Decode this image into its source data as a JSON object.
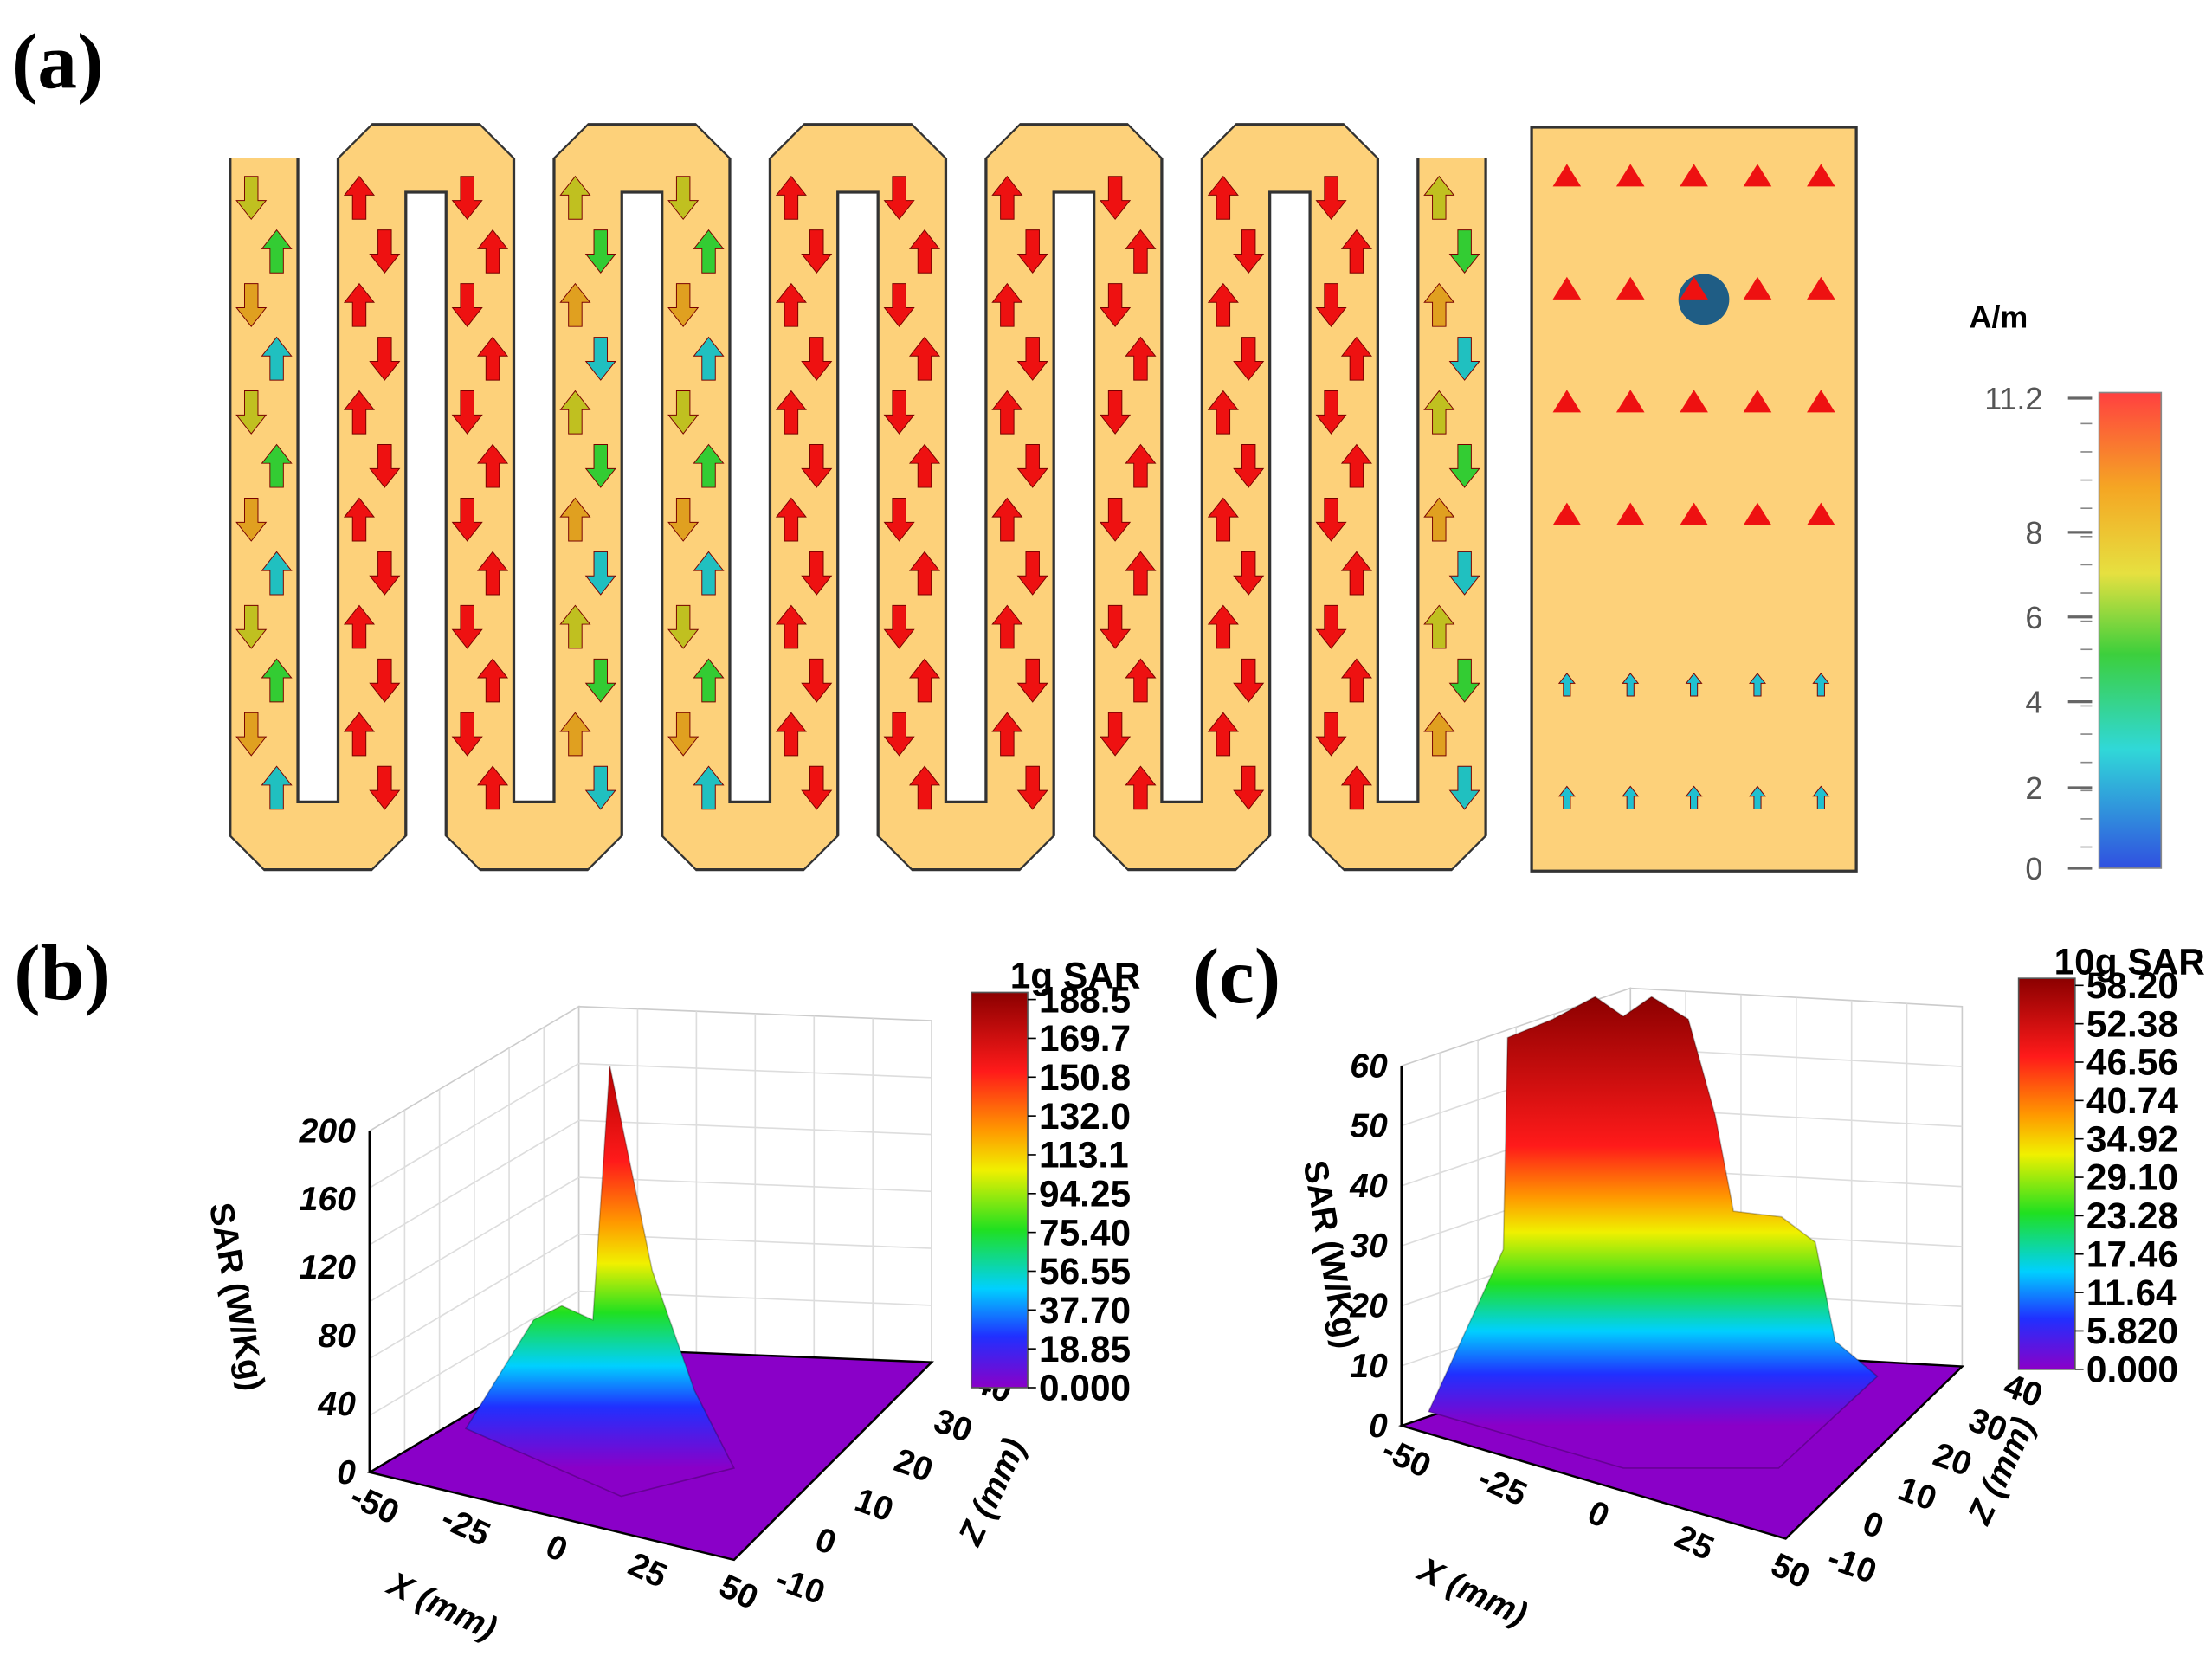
{
  "panels": [
    {
      "label": "(a)",
      "colorbar": {
        "title": "A/m",
        "ticks": [
          "11.2",
          "8",
          "6",
          "4",
          "2",
          "0"
        ]
      }
    },
    {
      "label": "(b)",
      "colorbar": {
        "title": "1g SAR",
        "ticks": [
          "188.5",
          "169.7",
          "150.8",
          "132.0",
          "113.1",
          "94.25",
          "75.40",
          "56.55",
          "37.70",
          "18.85",
          "0.000"
        ]
      },
      "y_axis": {
        "label": "SAR (W/Kg)",
        "ticks": [
          "200",
          "160",
          "120",
          "80",
          "40",
          "0"
        ]
      },
      "x_axis": {
        "label": "X (mm)",
        "ticks": [
          "-50",
          "-25",
          "0",
          "25",
          "50"
        ]
      },
      "z_axis": {
        "label": "Z (mm)",
        "ticks": [
          "40",
          "30",
          "20",
          "10",
          "0",
          "-10"
        ]
      }
    },
    {
      "label": "(c)",
      "colorbar": {
        "title": "10g SAR",
        "ticks": [
          "58.20",
          "52.38",
          "46.56",
          "40.74",
          "34.92",
          "29.10",
          "23.28",
          "17.46",
          "11.64",
          "5.820",
          "0.000"
        ]
      },
      "y_axis": {
        "label": "SAR (W/Kg)",
        "ticks": [
          "60",
          "50",
          "40",
          "30",
          "20",
          "10",
          "0"
        ]
      },
      "x_axis": {
        "label": "X (mm)",
        "ticks": [
          "-50",
          "-25",
          "0",
          "25",
          "50"
        ]
      },
      "z_axis": {
        "label": "Z (mm)",
        "ticks": [
          "40",
          "30",
          "20",
          "10",
          "0",
          "-10"
        ]
      }
    }
  ]
}
